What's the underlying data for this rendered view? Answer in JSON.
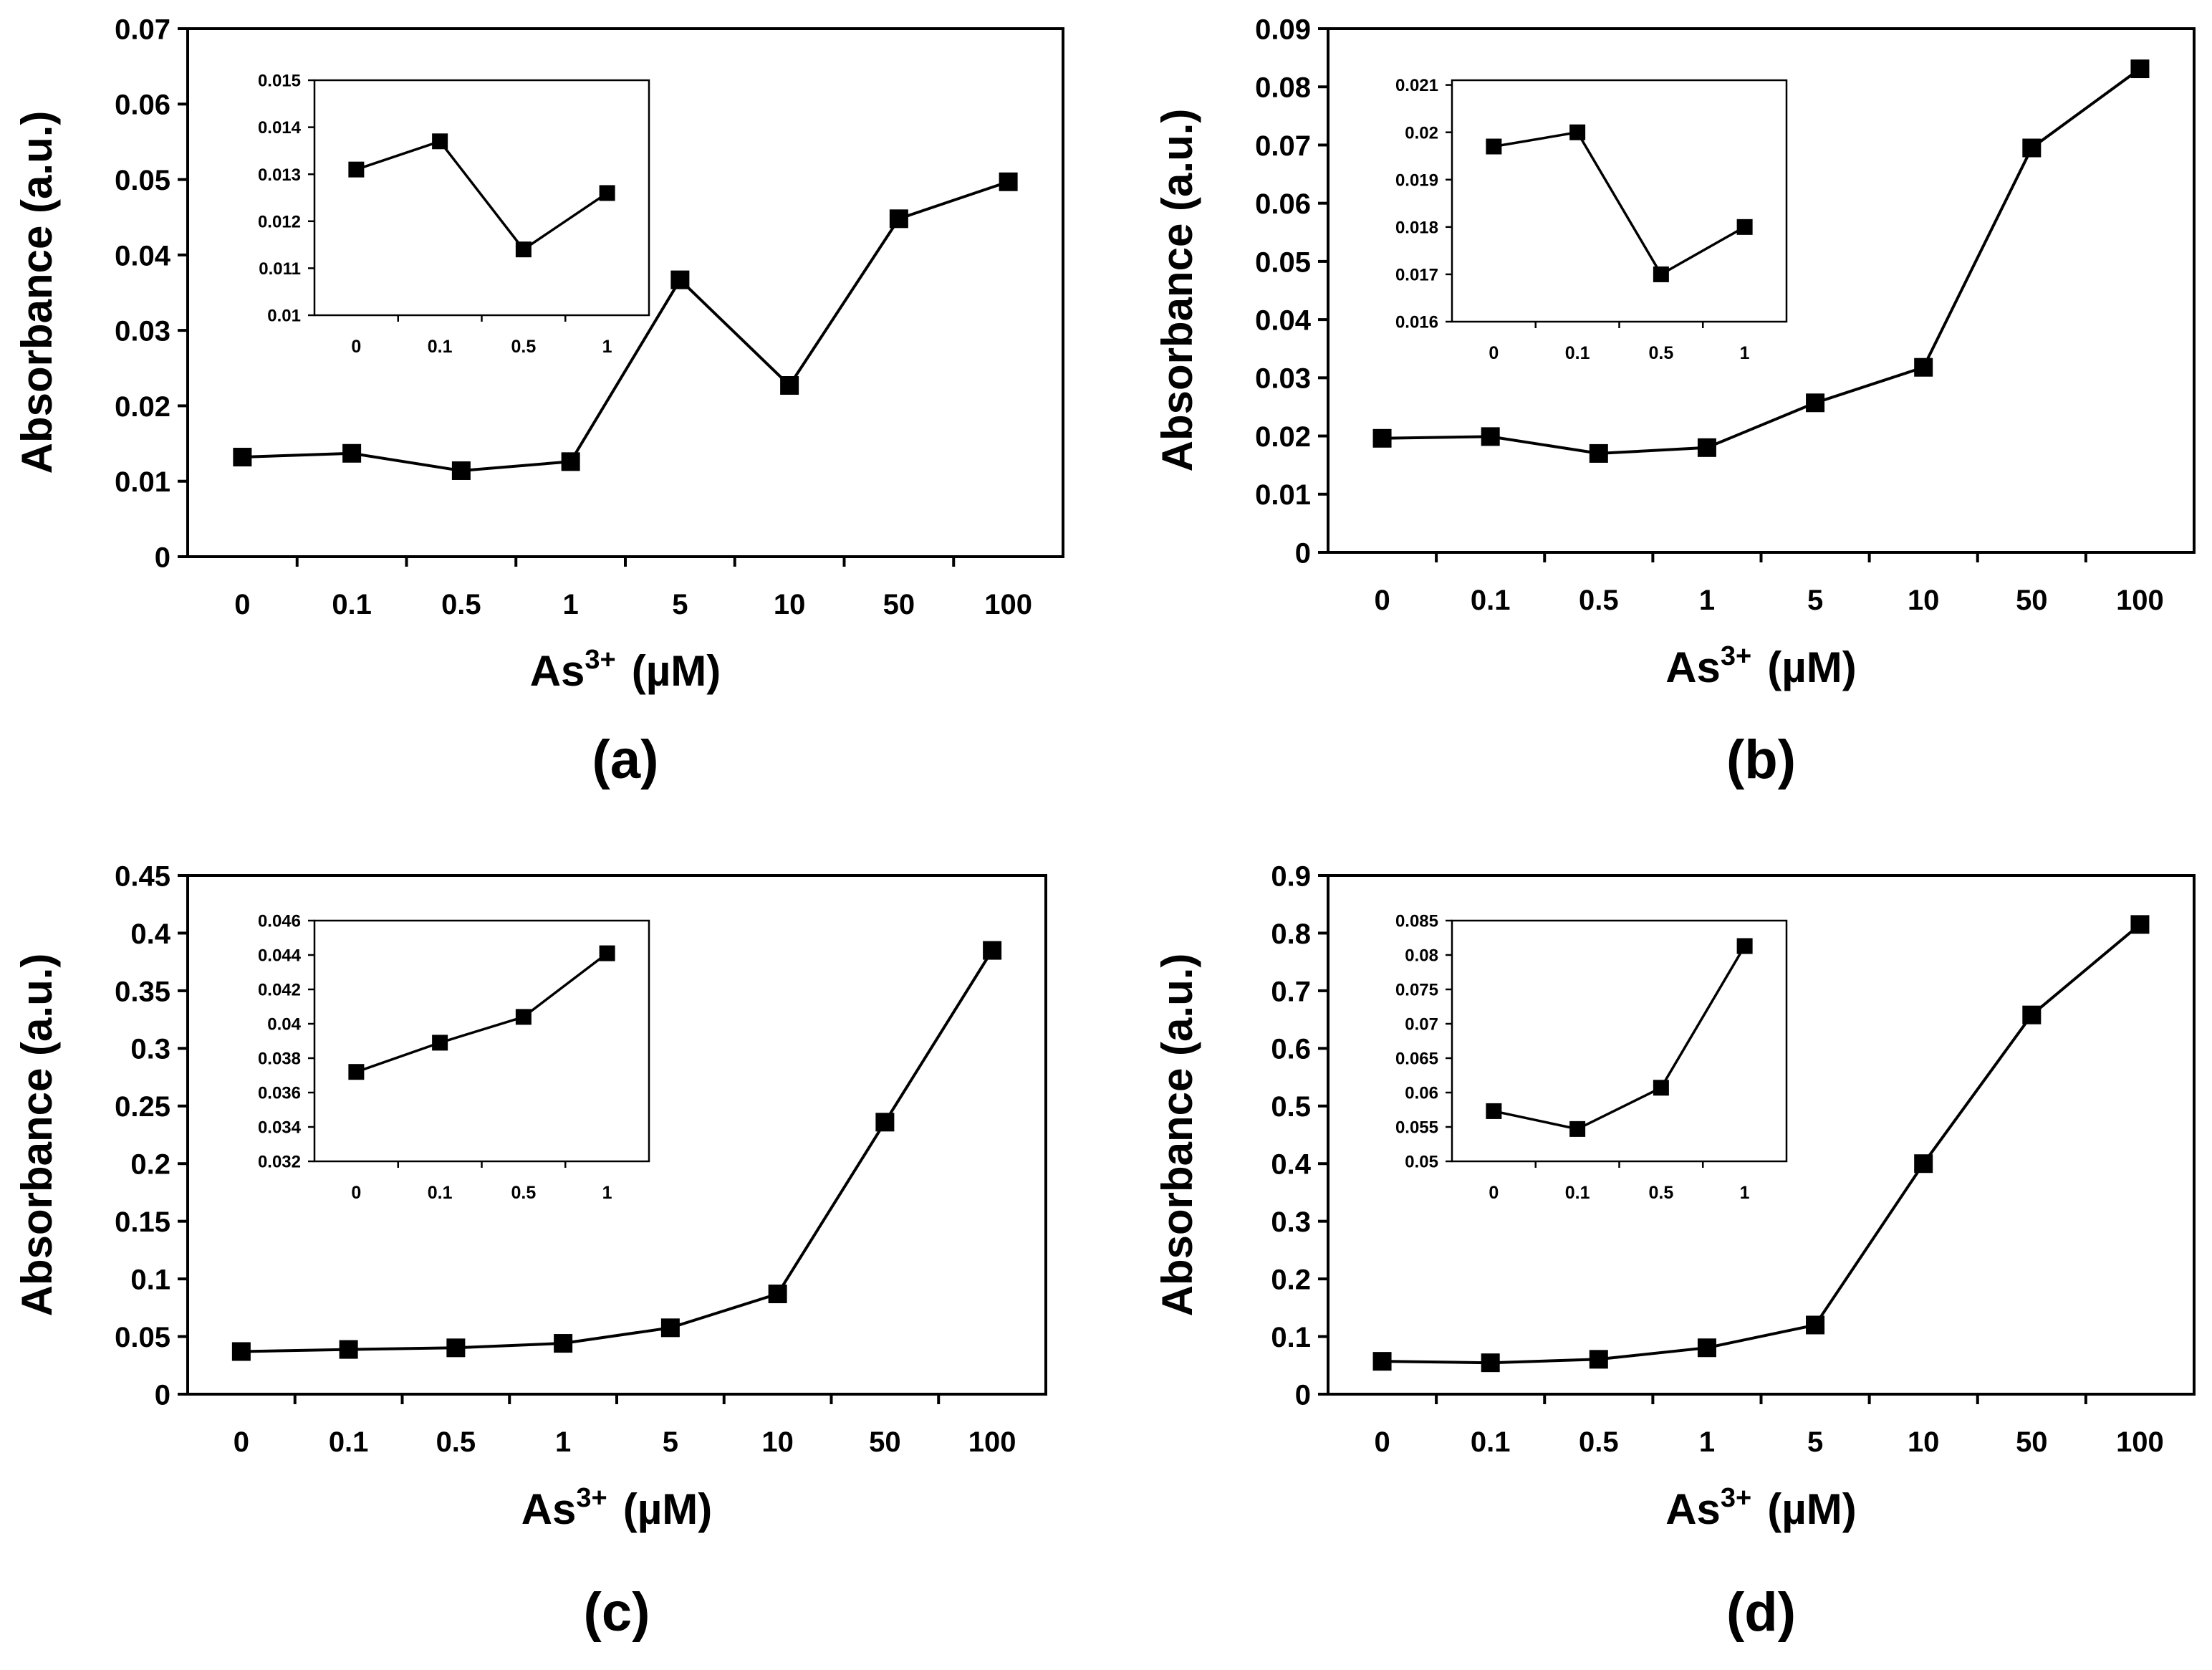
{
  "figure": {
    "panels": [
      {
        "id": "a",
        "label": "(a)",
        "ylabel": "Absorbance (a.u.)",
        "xlabel_main": "As",
        "xlabel_sup": "3+",
        "xlabel_unit": "(µM)"
      },
      {
        "id": "b",
        "label": "(b)",
        "ylabel": "Absorbance (a.u.)",
        "xlabel_main": "As",
        "xlabel_sup": "3+",
        "xlabel_unit": "(µM)"
      },
      {
        "id": "c",
        "label": "(c)",
        "ylabel": "Absorbance (a.u.)",
        "xlabel_main": "As",
        "xlabel_sup": "3+",
        "xlabel_unit": "(µM)"
      },
      {
        "id": "d",
        "label": "(d)",
        "ylabel": "Absorbance (a.u.)",
        "xlabel_main": "As",
        "xlabel_sup": "3+",
        "xlabel_unit": "(µM)"
      }
    ]
  },
  "chart_data": [
    {
      "panel": "(a)",
      "type": "line",
      "marker": "square",
      "ylabel": "Absorbance (a.u.)",
      "xlabel": "As3+ (µM)",
      "categories": [
        "0",
        "0.1",
        "0.5",
        "1",
        "5",
        "10",
        "50",
        "100"
      ],
      "values": [
        0.0132,
        0.0137,
        0.0114,
        0.0126,
        0.0367,
        0.0227,
        0.0448,
        0.0497
      ],
      "ylim": [
        0,
        0.07
      ],
      "yticks": [
        "0",
        "0.01",
        "0.02",
        "0.03",
        "0.04",
        "0.05",
        "0.06",
        "0.07"
      ],
      "inset": {
        "categories": [
          "0",
          "0.1",
          "0.5",
          "1"
        ],
        "values": [
          0.0131,
          0.0137,
          0.0114,
          0.0126
        ],
        "ylim": [
          0.01,
          0.015
        ],
        "yticks": [
          "0.01",
          "0.011",
          "0.012",
          "0.013",
          "0.014",
          "0.015"
        ]
      }
    },
    {
      "panel": "(b)",
      "type": "line",
      "marker": "square",
      "ylabel": "Absorbance (a.u.)",
      "xlabel": "As3+ (µM)",
      "categories": [
        "0",
        "0.1",
        "0.5",
        "1",
        "5",
        "10",
        "50",
        "100"
      ],
      "values": [
        0.0196,
        0.0199,
        0.017,
        0.018,
        0.0257,
        0.0318,
        0.0695,
        0.0831
      ],
      "ylim": [
        0,
        0.09
      ],
      "yticks": [
        "0",
        "0.01",
        "0.02",
        "0.03",
        "0.04",
        "0.05",
        "0.06",
        "0.07",
        "0.08",
        "0.09"
      ],
      "inset": {
        "categories": [
          "0",
          "0.1",
          "0.5",
          "1"
        ],
        "values": [
          0.0197,
          0.02,
          0.017,
          0.018
        ],
        "ylim": [
          0.016,
          0.0211
        ],
        "yticks": [
          "0.016",
          "0.017",
          "0.018",
          "0.019",
          "0.02",
          "0.021"
        ]
      }
    },
    {
      "panel": "(c)",
      "type": "line",
      "marker": "square",
      "ylabel": "Absorbance (a.u.)",
      "xlabel": "As3+ (µM)",
      "categories": [
        "0",
        "0.1",
        "0.5",
        "1",
        "5",
        "10",
        "50",
        "100"
      ],
      "values": [
        0.037,
        0.0388,
        0.0402,
        0.0441,
        0.0576,
        0.087,
        0.236,
        0.385
      ],
      "ylim": [
        0,
        0.45
      ],
      "yticks": [
        "0",
        "0.05",
        "0.1",
        "0.15",
        "0.2",
        "0.25",
        "0.3",
        "0.35",
        "0.4",
        "0.45"
      ],
      "inset": {
        "categories": [
          "0",
          "0.1",
          "0.5",
          "1"
        ],
        "values": [
          0.0372,
          0.0389,
          0.0404,
          0.0441
        ],
        "ylim": [
          0.032,
          0.046
        ],
        "yticks": [
          "0.032",
          "0.034",
          "0.036",
          "0.038",
          "0.04",
          "0.042",
          "0.044",
          "0.046"
        ]
      }
    },
    {
      "panel": "(d)",
      "type": "line",
      "marker": "square",
      "ylabel": "Absorbance (a.u.)",
      "xlabel": "As3+ (µM)",
      "categories": [
        "0",
        "0.1",
        "0.5",
        "1",
        "5",
        "10",
        "50",
        "100"
      ],
      "values": [
        0.057,
        0.0545,
        0.0605,
        0.0805,
        0.12,
        0.4,
        0.658,
        0.815
      ],
      "ylim": [
        0,
        0.9
      ],
      "yticks": [
        "0",
        "0.1",
        "0.2",
        "0.3",
        "0.4",
        "0.5",
        "0.6",
        "0.7",
        "0.8",
        "0.9"
      ],
      "inset": {
        "categories": [
          "0",
          "0.1",
          "0.5",
          "1"
        ],
        "values": [
          0.0573,
          0.0547,
          0.0607,
          0.0813
        ],
        "ylim": [
          0.05,
          0.085
        ],
        "yticks": [
          "0.05",
          "0.055",
          "0.06",
          "0.065",
          "0.07",
          "0.075",
          "0.08",
          "0.085"
        ]
      }
    }
  ]
}
